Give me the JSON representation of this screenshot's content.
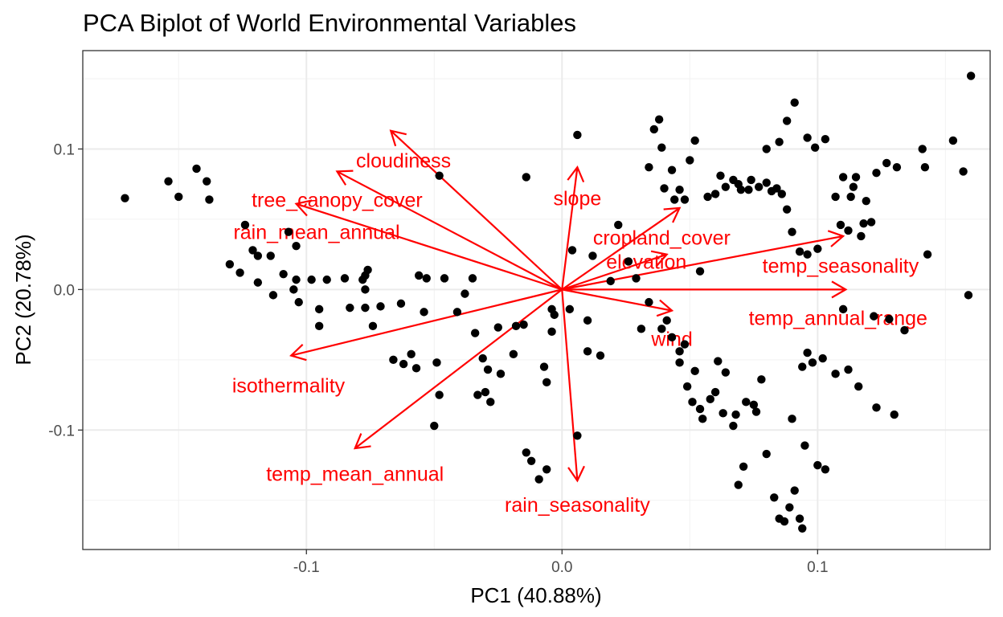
{
  "chart_data": {
    "type": "scatter",
    "subtype": "pca-biplot",
    "title": "PCA Biplot of World Environmental Variables",
    "xlabel": "PC1 (40.88%)",
    "ylabel": "PC2 (20.78%)",
    "xlim": [
      -0.1875,
      0.1675
    ],
    "ylim": [
      -0.185,
      0.17
    ],
    "x_ticks": [
      -0.1,
      0.0,
      0.1
    ],
    "x_tick_labels": [
      "-0.1",
      "0.0",
      "0.1"
    ],
    "y_ticks": [
      -0.1,
      0.0,
      0.1
    ],
    "y_tick_labels": [
      "-0.1",
      "0.0",
      "0.1"
    ],
    "grid": true,
    "point_color": "#000000",
    "loading_color": "#ff0000",
    "points": [
      [
        -0.171,
        0.065
      ],
      [
        -0.154,
        0.077
      ],
      [
        -0.15,
        0.066
      ],
      [
        -0.143,
        0.086
      ],
      [
        -0.139,
        0.077
      ],
      [
        -0.138,
        0.064
      ],
      [
        -0.124,
        0.046
      ],
      [
        -0.13,
        0.018
      ],
      [
        -0.126,
        0.012
      ],
      [
        -0.121,
        0.028
      ],
      [
        -0.119,
        0.024
      ],
      [
        -0.114,
        0.024
      ],
      [
        -0.119,
        0.005
      ],
      [
        -0.113,
        -0.004
      ],
      [
        -0.109,
        0.011
      ],
      [
        -0.107,
        0.041
      ],
      [
        -0.105,
        0.0
      ],
      [
        -0.104,
        0.007
      ],
      [
        -0.104,
        0.031
      ],
      [
        -0.103,
        -0.009
      ],
      [
        -0.098,
        0.007
      ],
      [
        -0.095,
        -0.014
      ],
      [
        -0.095,
        -0.026
      ],
      [
        -0.092,
        0.007
      ],
      [
        -0.085,
        0.008
      ],
      [
        -0.083,
        -0.013
      ],
      [
        -0.078,
        0.007
      ],
      [
        -0.077,
        0.01
      ],
      [
        -0.077,
        0.0
      ],
      [
        -0.077,
        -0.013
      ],
      [
        -0.076,
        0.014
      ],
      [
        -0.074,
        -0.026
      ],
      [
        -0.071,
        -0.012
      ],
      [
        -0.066,
        -0.05
      ],
      [
        -0.063,
        -0.01
      ],
      [
        -0.062,
        -0.053
      ],
      [
        -0.059,
        -0.046
      ],
      [
        -0.057,
        -0.056
      ],
      [
        -0.056,
        0.01
      ],
      [
        -0.054,
        -0.016
      ],
      [
        -0.053,
        0.008
      ],
      [
        -0.05,
        -0.097
      ],
      [
        -0.049,
        -0.052
      ],
      [
        -0.048,
        -0.075
      ],
      [
        -0.048,
        0.081
      ],
      [
        -0.046,
        0.008
      ],
      [
        -0.041,
        -0.016
      ],
      [
        -0.038,
        -0.003
      ],
      [
        -0.035,
        0.008
      ],
      [
        -0.034,
        -0.031
      ],
      [
        -0.033,
        -0.075
      ],
      [
        -0.031,
        -0.049
      ],
      [
        -0.03,
        -0.073
      ],
      [
        -0.029,
        -0.057
      ],
      [
        -0.028,
        -0.08
      ],
      [
        -0.025,
        -0.027
      ],
      [
        -0.024,
        -0.06
      ],
      [
        -0.019,
        -0.046
      ],
      [
        -0.018,
        -0.026
      ],
      [
        -0.015,
        -0.025
      ],
      [
        -0.014,
        0.08
      ],
      [
        -0.014,
        -0.116
      ],
      [
        -0.012,
        -0.122
      ],
      [
        -0.009,
        -0.135
      ],
      [
        -0.006,
        -0.128
      ],
      [
        -0.007,
        -0.055
      ],
      [
        -0.006,
        -0.066
      ],
      [
        -0.004,
        -0.03
      ],
      [
        -0.004,
        -0.014
      ],
      [
        -0.003,
        -0.018
      ],
      [
        0.003,
        -0.014
      ],
      [
        0.004,
        0.028
      ],
      [
        0.006,
        0.11
      ],
      [
        0.006,
        -0.104
      ],
      [
        0.01,
        -0.044
      ],
      [
        0.01,
        -0.022
      ],
      [
        0.012,
        0.024
      ],
      [
        0.015,
        -0.047
      ],
      [
        0.019,
        0.006
      ],
      [
        0.022,
        0.046
      ],
      [
        0.026,
        0.02
      ],
      [
        0.029,
        0.008
      ],
      [
        0.031,
        -0.028
      ],
      [
        0.034,
        -0.009
      ],
      [
        0.034,
        0.087
      ],
      [
        0.036,
        0.114
      ],
      [
        0.038,
        0.121
      ],
      [
        0.039,
        0.101
      ],
      [
        0.04,
        0.072
      ],
      [
        0.043,
        0.085
      ],
      [
        0.044,
        0.064
      ],
      [
        0.046,
        0.071
      ],
      [
        0.048,
        0.064
      ],
      [
        0.05,
        0.092
      ],
      [
        0.052,
        0.106
      ],
      [
        0.054,
        0.013
      ],
      [
        0.046,
        -0.052
      ],
      [
        0.049,
        -0.069
      ],
      [
        0.051,
        -0.08
      ],
      [
        0.054,
        -0.085
      ],
      [
        0.055,
        -0.092
      ],
      [
        0.058,
        -0.078
      ],
      [
        0.06,
        -0.073
      ],
      [
        0.061,
        -0.051
      ],
      [
        0.064,
        -0.059
      ],
      [
        0.067,
        -0.097
      ],
      [
        0.068,
        -0.089
      ],
      [
        0.069,
        -0.139
      ],
      [
        0.071,
        -0.126
      ],
      [
        0.072,
        -0.08
      ],
      [
        0.075,
        -0.082
      ],
      [
        0.076,
        -0.087
      ],
      [
        0.078,
        -0.064
      ],
      [
        0.08,
        -0.117
      ],
      [
        0.083,
        -0.148
      ],
      [
        0.085,
        -0.163
      ],
      [
        0.087,
        -0.165
      ],
      [
        0.089,
        -0.155
      ],
      [
        0.091,
        -0.143
      ],
      [
        0.093,
        -0.163
      ],
      [
        0.094,
        -0.17
      ],
      [
        0.057,
        0.066
      ],
      [
        0.06,
        0.068
      ],
      [
        0.062,
        0.081
      ],
      [
        0.064,
        0.073
      ],
      [
        0.067,
        0.078
      ],
      [
        0.069,
        0.075
      ],
      [
        0.07,
        0.071
      ],
      [
        0.073,
        0.071
      ],
      [
        0.074,
        0.078
      ],
      [
        0.077,
        0.073
      ],
      [
        0.08,
        0.076
      ],
      [
        0.082,
        0.07
      ],
      [
        0.084,
        0.072
      ],
      [
        0.086,
        0.068
      ],
      [
        0.088,
        0.057
      ],
      [
        0.09,
        0.041
      ],
      [
        0.093,
        0.027
      ],
      [
        0.096,
        0.025
      ],
      [
        0.1,
        0.029
      ],
      [
        0.109,
        0.046
      ],
      [
        0.112,
        0.042
      ],
      [
        0.113,
        0.066
      ],
      [
        0.115,
        0.08
      ],
      [
        0.117,
        0.038
      ],
      [
        0.118,
        0.047
      ],
      [
        0.119,
        0.063
      ],
      [
        0.121,
        0.048
      ],
      [
        0.08,
        0.1
      ],
      [
        0.085,
        0.105
      ],
      [
        0.088,
        0.12
      ],
      [
        0.091,
        0.133
      ],
      [
        0.096,
        0.108
      ],
      [
        0.099,
        0.101
      ],
      [
        0.103,
        0.107
      ],
      [
        0.107,
        0.066
      ],
      [
        0.11,
        0.08
      ],
      [
        0.114,
        0.073
      ],
      [
        0.123,
        0.083
      ],
      [
        0.127,
        0.09
      ],
      [
        0.131,
        0.087
      ],
      [
        0.141,
        0.1
      ],
      [
        0.142,
        0.087
      ],
      [
        0.153,
        0.106
      ],
      [
        0.157,
        0.084
      ],
      [
        0.16,
        0.152
      ],
      [
        0.159,
        -0.004
      ],
      [
        0.143,
        0.025
      ],
      [
        0.134,
        -0.029
      ],
      [
        0.128,
        -0.021
      ],
      [
        0.122,
        -0.019
      ],
      [
        0.11,
        -0.014
      ],
      [
        0.102,
        -0.049
      ],
      [
        0.098,
        -0.052
      ],
      [
        0.094,
        -0.055
      ],
      [
        0.096,
        -0.045
      ],
      [
        0.107,
        -0.06
      ],
      [
        0.112,
        -0.057
      ],
      [
        0.116,
        -0.069
      ],
      [
        0.123,
        -0.084
      ],
      [
        0.13,
        -0.089
      ],
      [
        0.09,
        -0.092
      ],
      [
        0.095,
        -0.111
      ],
      [
        0.1,
        -0.125
      ],
      [
        0.103,
        -0.128
      ],
      [
        0.063,
        -0.088
      ],
      [
        0.052,
        -0.058
      ],
      [
        0.048,
        -0.039
      ],
      [
        0.046,
        -0.044
      ],
      [
        0.043,
        -0.034
      ],
      [
        0.041,
        -0.022
      ],
      [
        0.039,
        -0.028
      ]
    ],
    "loadings": [
      {
        "name": "cloudiness",
        "x": -0.067,
        "y": 0.113,
        "label_x": -0.062,
        "label_y": 0.092
      },
      {
        "name": "tree_canopy_cover",
        "x": -0.088,
        "y": 0.084,
        "label_x": -0.088,
        "label_y": 0.064
      },
      {
        "name": "rain_mean_annual",
        "x": -0.104,
        "y": 0.061,
        "label_x": -0.096,
        "label_y": 0.041
      },
      {
        "name": "slope",
        "x": 0.006,
        "y": 0.087,
        "label_x": 0.006,
        "label_y": 0.065
      },
      {
        "name": "cropland_cover",
        "x": 0.046,
        "y": 0.058,
        "label_x": 0.039,
        "label_y": 0.037
      },
      {
        "name": "elevation",
        "x": 0.041,
        "y": 0.025,
        "label_x": 0.033,
        "label_y": 0.02
      },
      {
        "name": "temp_seasonality",
        "x": 0.11,
        "y": 0.038,
        "label_x": 0.109,
        "label_y": 0.017
      },
      {
        "name": "temp_annual_range",
        "x": 0.111,
        "y": 0.0,
        "label_x": 0.108,
        "label_y": -0.02
      },
      {
        "name": "wind",
        "x": 0.043,
        "y": -0.015,
        "label_x": 0.043,
        "label_y": -0.035
      },
      {
        "name": "isothermality",
        "x": -0.106,
        "y": -0.047,
        "label_x": -0.107,
        "label_y": -0.068
      },
      {
        "name": "temp_mean_annual",
        "x": -0.081,
        "y": -0.113,
        "label_x": -0.081,
        "label_y": -0.131
      },
      {
        "name": "rain_seasonality",
        "x": 0.006,
        "y": -0.136,
        "label_x": 0.006,
        "label_y": -0.153
      }
    ]
  }
}
